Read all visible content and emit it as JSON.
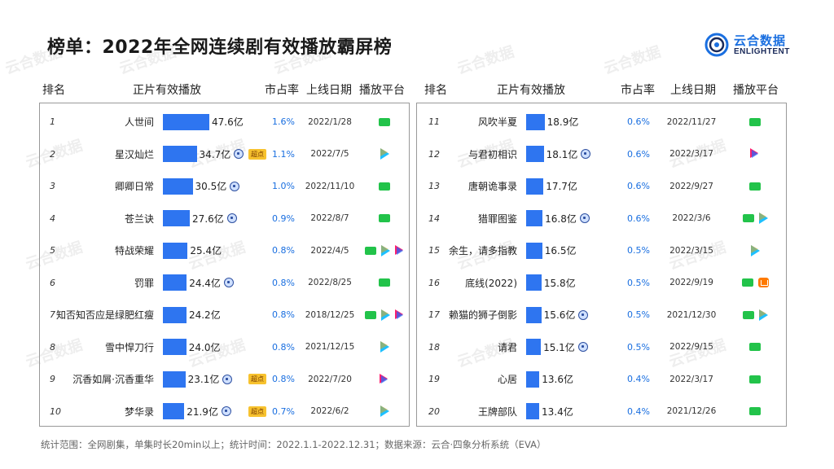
{
  "title": "榜单：2022年全网连续剧有效播放霸屏榜",
  "logo": {
    "line1": "云合数据",
    "line2": "ENLIGHTENT"
  },
  "headers": {
    "rank": "排名",
    "plays": "正片有效播放",
    "share": "市占率",
    "date": "上线日期",
    "platform": "播放平台"
  },
  "footer": "统计范围：全网剧集，单集时长20min以上；统计时间：2022.1.1-2022.12.31；数据来源：云合·四象分析系统（EVA）",
  "watermark": "云合数据",
  "colors": {
    "bar": "#2e75f0",
    "share": "#1a6fe0"
  },
  "chart_data": {
    "type": "bar",
    "unit": "亿",
    "xmax": 47.6,
    "rows": [
      {
        "rank": "1",
        "name": "人世间",
        "value": 47.6,
        "value_label": "47.6亿",
        "tx_mark": false,
        "badge": "",
        "share": "1.6%",
        "date": "2022/1/28",
        "platforms": [
          "iqiyi"
        ]
      },
      {
        "rank": "2",
        "name": "星汉灿烂",
        "value": 34.7,
        "value_label": "34.7亿",
        "tx_mark": true,
        "badge": "超点",
        "share": "1.1%",
        "date": "2022/7/5",
        "platforms": [
          "tencent"
        ]
      },
      {
        "rank": "3",
        "name": "卿卿日常",
        "value": 30.5,
        "value_label": "30.5亿",
        "tx_mark": true,
        "badge": "",
        "share": "1.0%",
        "date": "2022/11/10",
        "platforms": [
          "iqiyi"
        ]
      },
      {
        "rank": "4",
        "name": "苍兰诀",
        "value": 27.6,
        "value_label": "27.6亿",
        "tx_mark": true,
        "badge": "",
        "share": "0.9%",
        "date": "2022/8/7",
        "platforms": [
          "iqiyi"
        ]
      },
      {
        "rank": "5",
        "name": "特战荣耀",
        "value": 25.4,
        "value_label": "25.4亿",
        "tx_mark": false,
        "badge": "",
        "share": "0.8%",
        "date": "2022/4/5",
        "platforms": [
          "iqiyi",
          "tencent",
          "youku"
        ]
      },
      {
        "rank": "6",
        "name": "罚罪",
        "value": 24.4,
        "value_label": "24.4亿",
        "tx_mark": true,
        "badge": "",
        "share": "0.8%",
        "date": "2022/8/25",
        "platforms": [
          "iqiyi"
        ]
      },
      {
        "rank": "7",
        "name": "知否知否应是绿肥红瘦",
        "value": 24.2,
        "value_label": "24.2亿",
        "tx_mark": false,
        "badge": "",
        "share": "0.8%",
        "date": "2018/12/25",
        "platforms": [
          "iqiyi",
          "tencent",
          "youku"
        ]
      },
      {
        "rank": "8",
        "name": "雪中悍刀行",
        "value": 24.0,
        "value_label": "24.0亿",
        "tx_mark": false,
        "badge": "",
        "share": "0.8%",
        "date": "2021/12/15",
        "platforms": [
          "tencent"
        ]
      },
      {
        "rank": "9",
        "name": "沉香如屑·沉香重华",
        "value": 23.1,
        "value_label": "23.1亿",
        "tx_mark": true,
        "badge": "超点",
        "share": "0.8%",
        "date": "2022/7/20",
        "platforms": [
          "youku"
        ]
      },
      {
        "rank": "10",
        "name": "梦华录",
        "value": 21.9,
        "value_label": "21.9亿",
        "tx_mark": true,
        "badge": "超点",
        "share": "0.7%",
        "date": "2022/6/2",
        "platforms": [
          "tencent"
        ]
      },
      {
        "rank": "11",
        "name": "风吹半夏",
        "value": 18.9,
        "value_label": "18.9亿",
        "tx_mark": false,
        "badge": "",
        "share": "0.6%",
        "date": "2022/11/27",
        "platforms": [
          "iqiyi"
        ]
      },
      {
        "rank": "12",
        "name": "与君初相识",
        "value": 18.1,
        "value_label": "18.1亿",
        "tx_mark": true,
        "badge": "",
        "share": "0.6%",
        "date": "2022/3/17",
        "platforms": [
          "youku"
        ]
      },
      {
        "rank": "13",
        "name": "唐朝诡事录",
        "value": 17.7,
        "value_label": "17.7亿",
        "tx_mark": false,
        "badge": "",
        "share": "0.6%",
        "date": "2022/9/27",
        "platforms": [
          "iqiyi"
        ]
      },
      {
        "rank": "14",
        "name": "猎罪图鉴",
        "value": 16.8,
        "value_label": "16.8亿",
        "tx_mark": true,
        "badge": "",
        "share": "0.6%",
        "date": "2022/3/6",
        "platforms": [
          "iqiyi",
          "tencent"
        ]
      },
      {
        "rank": "15",
        "name": "余生，请多指教",
        "value": 16.5,
        "value_label": "16.5亿",
        "tx_mark": false,
        "badge": "",
        "share": "0.5%",
        "date": "2022/3/15",
        "platforms": [
          "tencent"
        ]
      },
      {
        "rank": "16",
        "name": "底线(2022)",
        "value": 15.8,
        "value_label": "15.8亿",
        "tx_mark": false,
        "badge": "",
        "share": "0.5%",
        "date": "2022/9/19",
        "platforms": [
          "iqiyi",
          "mango"
        ]
      },
      {
        "rank": "17",
        "name": "赖猫的狮子倒影",
        "value": 15.6,
        "value_label": "15.6亿",
        "tx_mark": true,
        "badge": "",
        "share": "0.5%",
        "date": "2021/12/30",
        "platforms": [
          "iqiyi",
          "tencent"
        ]
      },
      {
        "rank": "18",
        "name": "请君",
        "value": 15.1,
        "value_label": "15.1亿",
        "tx_mark": true,
        "badge": "",
        "share": "0.5%",
        "date": "2022/9/15",
        "platforms": [
          "iqiyi"
        ]
      },
      {
        "rank": "19",
        "name": "心居",
        "value": 13.6,
        "value_label": "13.6亿",
        "tx_mark": false,
        "badge": "",
        "share": "0.4%",
        "date": "2022/3/17",
        "platforms": [
          "iqiyi"
        ]
      },
      {
        "rank": "20",
        "name": "王牌部队",
        "value": 13.4,
        "value_label": "13.4亿",
        "tx_mark": false,
        "badge": "",
        "share": "0.4%",
        "date": "2021/12/26",
        "platforms": [
          "iqiyi"
        ]
      }
    ]
  }
}
